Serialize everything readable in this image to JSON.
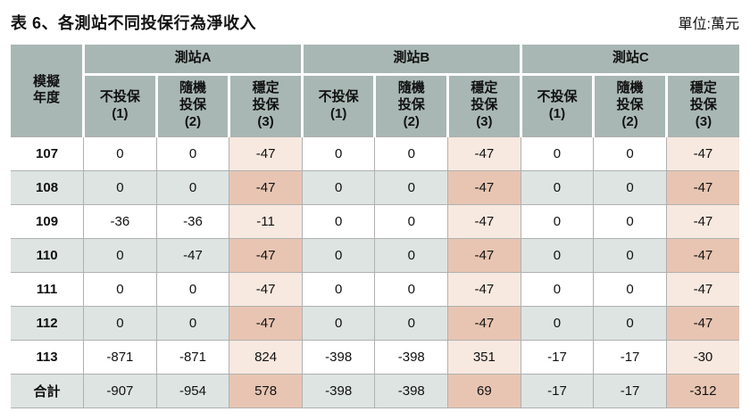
{
  "title": "表 6、各測站不同投保行為淨收入",
  "unit_label": "單位:萬元",
  "table": {
    "year_header": "模擬\n年度",
    "stations": [
      "測站A",
      "測站B",
      "測站C"
    ],
    "behavior_headers": [
      "不投保\n(1)",
      "隨機\n投保\n(2)",
      "穩定\n投保\n(3)"
    ],
    "rows": [
      {
        "label": "107",
        "cells": [
          "0",
          "0",
          "-47",
          "0",
          "0",
          "-47",
          "0",
          "0",
          "-47"
        ]
      },
      {
        "label": "108",
        "cells": [
          "0",
          "0",
          "-47",
          "0",
          "0",
          "-47",
          "0",
          "0",
          "-47"
        ]
      },
      {
        "label": "109",
        "cells": [
          "-36",
          "-36",
          "-11",
          "0",
          "0",
          "-47",
          "0",
          "0",
          "-47"
        ]
      },
      {
        "label": "110",
        "cells": [
          "0",
          "-47",
          "-47",
          "0",
          "0",
          "-47",
          "0",
          "0",
          "-47"
        ]
      },
      {
        "label": "111",
        "cells": [
          "0",
          "0",
          "-47",
          "0",
          "0",
          "-47",
          "0",
          "0",
          "-47"
        ]
      },
      {
        "label": "112",
        "cells": [
          "0",
          "0",
          "-47",
          "0",
          "0",
          "-47",
          "0",
          "0",
          "-47"
        ]
      },
      {
        "label": "113",
        "cells": [
          "-871",
          "-871",
          "824",
          "-398",
          "-398",
          "351",
          "-17",
          "-17",
          "-30"
        ]
      },
      {
        "label": "合計",
        "cells": [
          "-907",
          "-954",
          "578",
          "-398",
          "-398",
          "69",
          "-17",
          "-17",
          "-312"
        ]
      }
    ],
    "colors": {
      "header_bg": "#a8b7b3",
      "alt_row_bg": "#dde4e2",
      "stable_col_light": "#f7e9e0",
      "stable_col_dark": "#e8c5b2",
      "grid_line": "#b0b0b0"
    }
  }
}
